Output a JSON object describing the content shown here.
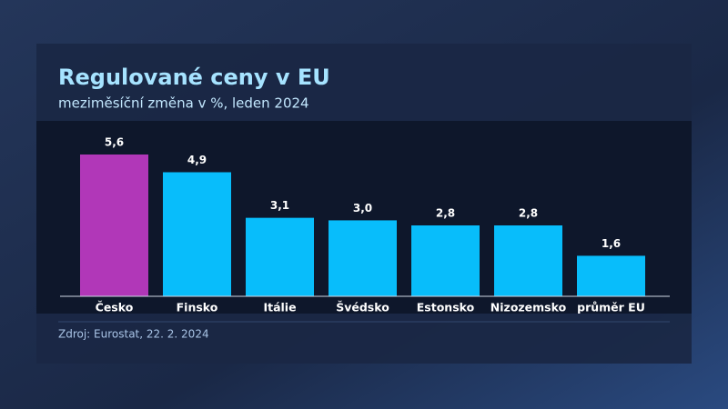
{
  "chart_data": {
    "type": "bar",
    "title": "Regulované ceny v EU",
    "subtitle": "meziměsíční změna v %, leden 2024",
    "categories": [
      "Česko",
      "Finsko",
      "Itálie",
      "Švédsko",
      "Estonsko",
      "Nizozemsko",
      "průměr EU"
    ],
    "values": [
      5.6,
      4.9,
      3.1,
      3.0,
      2.8,
      2.8,
      1.6
    ],
    "value_labels": [
      "5,6",
      "4,9",
      "3,1",
      "3,0",
      "2,8",
      "2,8",
      "1,6"
    ],
    "colors": [
      "#b137b8",
      "#08bdfb",
      "#08bdfb",
      "#08bdfb",
      "#08bdfb",
      "#08bdfb",
      "#08bdfb"
    ],
    "source": "Zdroj: Eurostat, 22. 2. 2024"
  }
}
